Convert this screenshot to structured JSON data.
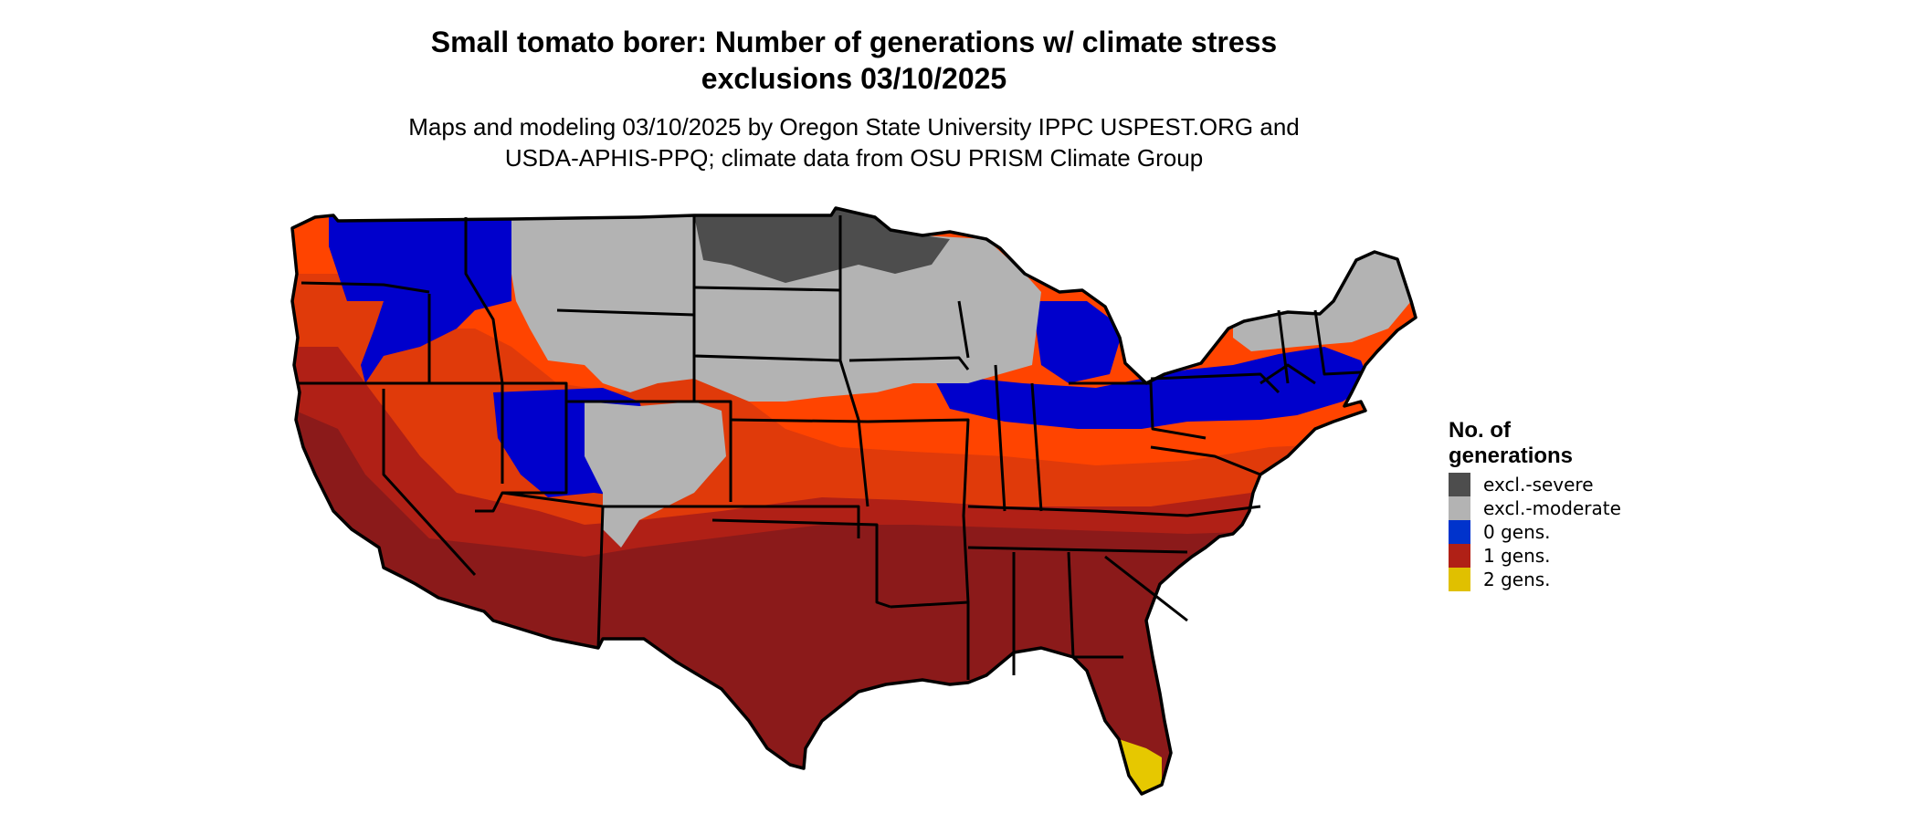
{
  "header": {
    "title_line1": "Small tomato borer: Number of generations w/ climate stress",
    "title_line2": "exclusions 03/10/2025",
    "subtitle_line1": "Maps and modeling 03/10/2025 by Oregon State University IPPC USPEST.ORG and",
    "subtitle_line2": "USDA-APHIS-PPQ; climate data from OSU PRISM Climate Group"
  },
  "legend": {
    "title_line1": "No. of",
    "title_line2": "generations",
    "items": [
      {
        "label": "excl.-severe",
        "color": "#4d4d4d"
      },
      {
        "label": "excl.-moderate",
        "color": "#b3b3b3"
      },
      {
        "label": "0 gens.",
        "color": "#0033cc"
      },
      {
        "label": "1 gens.",
        "color": "#b02016"
      },
      {
        "label": "2 gens.",
        "color": "#e0c000"
      }
    ]
  },
  "map": {
    "region": "Contiguous United States",
    "colors": {
      "severe": "#4d4d4d",
      "moderate": "#b3b3b3",
      "zero": "#0000cc",
      "orange": "#ff4400",
      "orange_dark": "#e03a0a",
      "red": "#b02016",
      "maroon": "#8b1a1a",
      "yellow": "#e6c800",
      "border": "#000000"
    }
  }
}
